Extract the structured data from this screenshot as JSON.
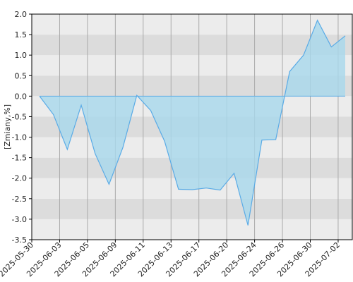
{
  "chart_data": {
    "type": "area",
    "y_label": "[Zmiany,%]",
    "values": [
      0,
      -0.45,
      -1.3,
      -0.22,
      -1.4,
      -2.15,
      -1.25,
      0.02,
      -0.35,
      -1.1,
      -2.27,
      -2.28,
      -2.24,
      -2.29,
      -1.88,
      -3.15,
      -1.07,
      -1.06,
      0.6,
      1.0,
      1.85,
      1.2,
      1.47
    ],
    "xticks": [
      "2025-05-30",
      "2025-06-03",
      "2025-06-05",
      "2025-06-09",
      "2025-06-11",
      "2025-06-13",
      "2025-06-17",
      "2025-06-20",
      "2025-06-24",
      "2025-06-26",
      "2025-06-30",
      "2025-07-02"
    ],
    "ylim": [
      -3.5,
      2.0
    ],
    "yticks": [
      {
        "value": -3.5,
        "label": "-3.5"
      },
      {
        "value": -3.0,
        "label": "-3.0"
      },
      {
        "value": -2.5,
        "label": "-2.5"
      },
      {
        "value": -2.0,
        "label": "-2.0"
      },
      {
        "value": -1.5,
        "label": "-1.5"
      },
      {
        "value": -1.0,
        "label": "-1.0"
      },
      {
        "value": -0.5,
        "label": "-0.5"
      },
      {
        "value": 0,
        "label": "0.0"
      },
      {
        "value": 0.5,
        "label": "0.5"
      },
      {
        "value": 1.0,
        "label": "1.0"
      },
      {
        "value": 1.5,
        "label": "1.5"
      },
      {
        "value": 2.0,
        "label": "2.0"
      }
    ],
    "color": "#5aabe6",
    "fill": "#a8d8ec",
    "grid": true
  }
}
